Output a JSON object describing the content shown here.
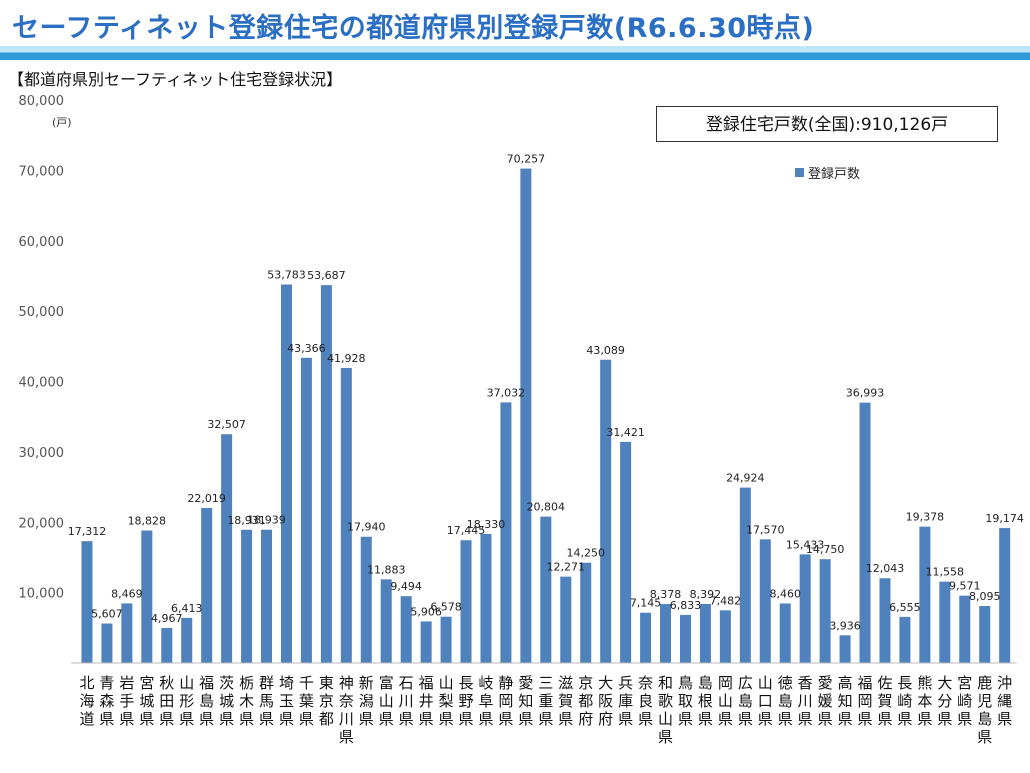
{
  "header": {
    "title": "セーフティネット登録住宅の都道府県別登録戸数(R6.6.30時点)"
  },
  "chart_data": {
    "type": "bar",
    "title": "【都道府県別セーフティネット住宅登録状況】",
    "total_label": "登録住宅戸数(全国):910,126戸",
    "y_unit": "(戸)",
    "ylim": [
      0,
      80000
    ],
    "y_ticks": [
      "80,000",
      "70,000",
      "60,000",
      "50,000",
      "40,000",
      "30,000",
      "20,000",
      "10,000"
    ],
    "legend_position": "top-right",
    "grid": false,
    "categories": [
      "北海道",
      "青森県",
      "岩手県",
      "宮城県",
      "秋田県",
      "山形県",
      "福島県",
      "茨城県",
      "栃木県",
      "群馬県",
      "埼玉県",
      "千葉県",
      "東京都",
      "神奈川県",
      "新潟県",
      "富山県",
      "石川県",
      "福井県",
      "山梨県",
      "長野県",
      "岐阜県",
      "静岡県",
      "愛知県",
      "三重県",
      "滋賀県",
      "京都府",
      "大阪府",
      "兵庫県",
      "奈良県",
      "和歌山県",
      "鳥取県",
      "島根県",
      "岡山県",
      "広島県",
      "山口県",
      "徳島県",
      "香川県",
      "愛媛県",
      "高知県",
      "福岡県",
      "佐賀県",
      "長崎県",
      "熊本県",
      "大分県",
      "宮崎県",
      "鹿児島県",
      "沖縄県"
    ],
    "series": [
      {
        "name": "登録戸数",
        "color": "#4f81bd",
        "values": [
          17312,
          5607,
          8469,
          18828,
          4967,
          6413,
          22019,
          32507,
          18931,
          18939,
          53783,
          43366,
          53687,
          41928,
          17940,
          11883,
          9494,
          5906,
          6578,
          17445,
          18330,
          37032,
          70257,
          20804,
          12271,
          14250,
          43089,
          31421,
          7145,
          8378,
          6833,
          8392,
          7482,
          24924,
          17570,
          8460,
          15433,
          14750,
          3936,
          36993,
          12043,
          6555,
          19378,
          11558,
          9571,
          8095,
          19174
        ],
        "labels": [
          "17,312",
          "5,607",
          "8,469",
          "18,828",
          "4,967",
          "6,413",
          "22,019",
          "32,507",
          "18,931",
          "18,939",
          "53,783",
          "43,366",
          "53,687",
          "41,928",
          "17,940",
          "11,883",
          "9,494",
          "5,906",
          "6,578",
          "17,445",
          "18,330",
          "37,032",
          "70,257",
          "20,804",
          "12,271",
          "14,250",
          "43,089",
          "31,421",
          "7,145",
          "8,378",
          "6,833",
          "8,392",
          "7,482",
          "24,924",
          "17,570",
          "8,460",
          "15,433",
          "14,750",
          "3,936",
          "36,993",
          "12,043",
          "6,555",
          "19,378",
          "11,558",
          "9,571",
          "8,095",
          "19,174"
        ]
      }
    ]
  }
}
